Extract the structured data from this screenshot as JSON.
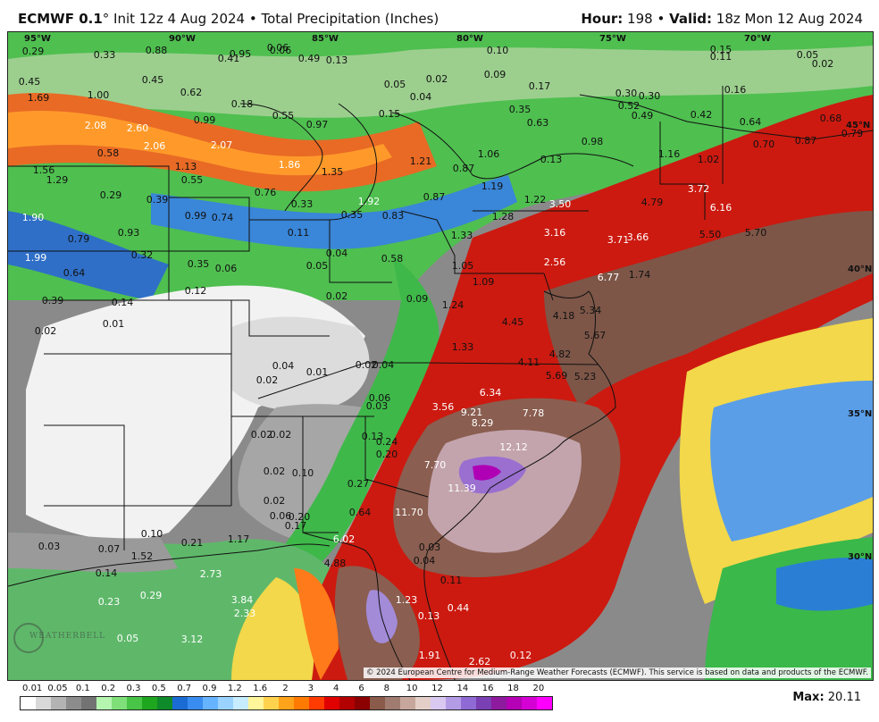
{
  "header": {
    "model": "ECMWF 0.1",
    "init": "° Init 12z 4 Aug 2024",
    "sep": " • ",
    "product": "Total Precipitation (Inches)",
    "hour_label": "Hour:",
    "hour": " 198 • ",
    "valid_label": "Valid:",
    "valid": " 18z Mon 12 Aug 2024"
  },
  "map": {
    "copyright": "© 2024 European Centre for Medium-Range Weather Forecasts (ECMWF). This service is based on data and products of the ECMWF.",
    "logo_text": "WEATHERBELL",
    "lon_labels": [
      "95°W",
      "90°W",
      "85°W",
      "80°W",
      "75°W",
      "70°W"
    ],
    "lat_labels": [
      "45°N",
      "40°N",
      "35°N",
      "30°N"
    ],
    "values": [
      "0.29",
      "0.33",
      "0.88",
      "0.95",
      "0.06",
      "0.49",
      "0.13",
      "0.10",
      "0.06",
      "0.15",
      "0.11",
      "0.05",
      "0.02",
      "0.45",
      "1.69",
      "1.00",
      "0.45",
      "0.62",
      "0.41",
      "0.05",
      "0.02",
      "0.04",
      "0.09",
      "0.17",
      "0.30",
      "0.30",
      "0.16",
      "2.08",
      "2.60",
      "0.99",
      "0.18",
      "0.55",
      "0.97",
      "0.15",
      "0.35",
      "0.63",
      "0.52",
      "0.49",
      "0.42",
      "0.64",
      "0.68",
      "0.58",
      "2.06",
      "2.07",
      "1.86",
      "1.35",
      "1.21",
      "0.87",
      "1.06",
      "0.13",
      "0.98",
      "1.16",
      "1.02",
      "0.70",
      "0.87",
      "0.79",
      "1.56",
      "1.29",
      "1.13",
      "0.55",
      "0.76",
      "1.19",
      "1.22",
      "3.72",
      "0.29",
      "0.39",
      "0.99",
      "0.74",
      "0.33",
      "1.92",
      "0.35",
      "0.83",
      "0.87",
      "1.28",
      "3.50",
      "4.79",
      "6.16",
      "1.90",
      "0.79",
      "0.93",
      "0.11",
      "1.33",
      "3.16",
      "3.71",
      "3.66",
      "5.50",
      "5.70",
      "1.99",
      "0.32",
      "0.35",
      "0.06",
      "0.05",
      "0.04",
      "0.58",
      "1.05",
      "2.56",
      "6.77",
      "1.74",
      "0.64",
      "0.12",
      "0.02",
      "1.09",
      "0.39",
      "0.14",
      "0.09",
      "1.24",
      "4.45",
      "4.18",
      "5.34",
      "0.01",
      "0.02",
      "5.67",
      "1.33",
      "4.82",
      "0.04",
      "0.01",
      "0.02",
      "0.04",
      "4.11",
      "5.69",
      "5.23",
      "0.02",
      "0.06",
      "6.34",
      "0.03",
      "3.56",
      "9.21",
      "7.78",
      "8.29",
      "0.02",
      "0.02",
      "0.13",
      "0.24",
      "12.12",
      "0.20",
      "7.70",
      "0.02",
      "0.10",
      "0.27",
      "11.39",
      "0.02",
      "0.06",
      "0.20",
      "0.64",
      "11.70",
      "0.17",
      "0.03",
      "0.07",
      "0.10",
      "0.21",
      "1.17",
      "6.02",
      "0.03",
      "1.52",
      "4.88",
      "0.04",
      "0.14",
      "2.73",
      "0.11",
      "0.23",
      "0.29",
      "3.84",
      "1.23",
      "0.44",
      "2.33",
      "0.13",
      "0.05",
      "3.12",
      "1.91",
      "2.62",
      "0.12"
    ]
  },
  "colorbar": {
    "ticks": [
      "0.01",
      "0.05",
      "0.1",
      "0.2",
      "0.3",
      "0.5",
      "0.7",
      "0.9",
      "1.2",
      "1.6",
      "2",
      "3",
      "4",
      "6",
      "8",
      "10",
      "12",
      "14",
      "16",
      "18",
      "20"
    ],
    "colors": [
      "#ffffff",
      "#d9d9d9",
      "#b3b3b3",
      "#8c8c8c",
      "#737373",
      "#b5f5b0",
      "#7fe07a",
      "#48c446",
      "#1fa61f",
      "#0f8a2a",
      "#1a6bd4",
      "#3a8df0",
      "#66b3ff",
      "#9ad3ff",
      "#c7ecff",
      "#fff59a",
      "#ffd24d",
      "#ffa31a",
      "#ff7a00",
      "#ff3b00",
      "#e00000",
      "#b30000",
      "#8c0000",
      "#8a5a4a",
      "#a07b70",
      "#c7a79c",
      "#e3cfc8",
      "#d9c8f0",
      "#b49be6",
      "#8f6ad4",
      "#7a3fb3",
      "#8e1a9e",
      "#b500b5",
      "#d400d4",
      "#ff00ff"
    ],
    "max_label": "Max:",
    "max_value": " 20.11"
  }
}
